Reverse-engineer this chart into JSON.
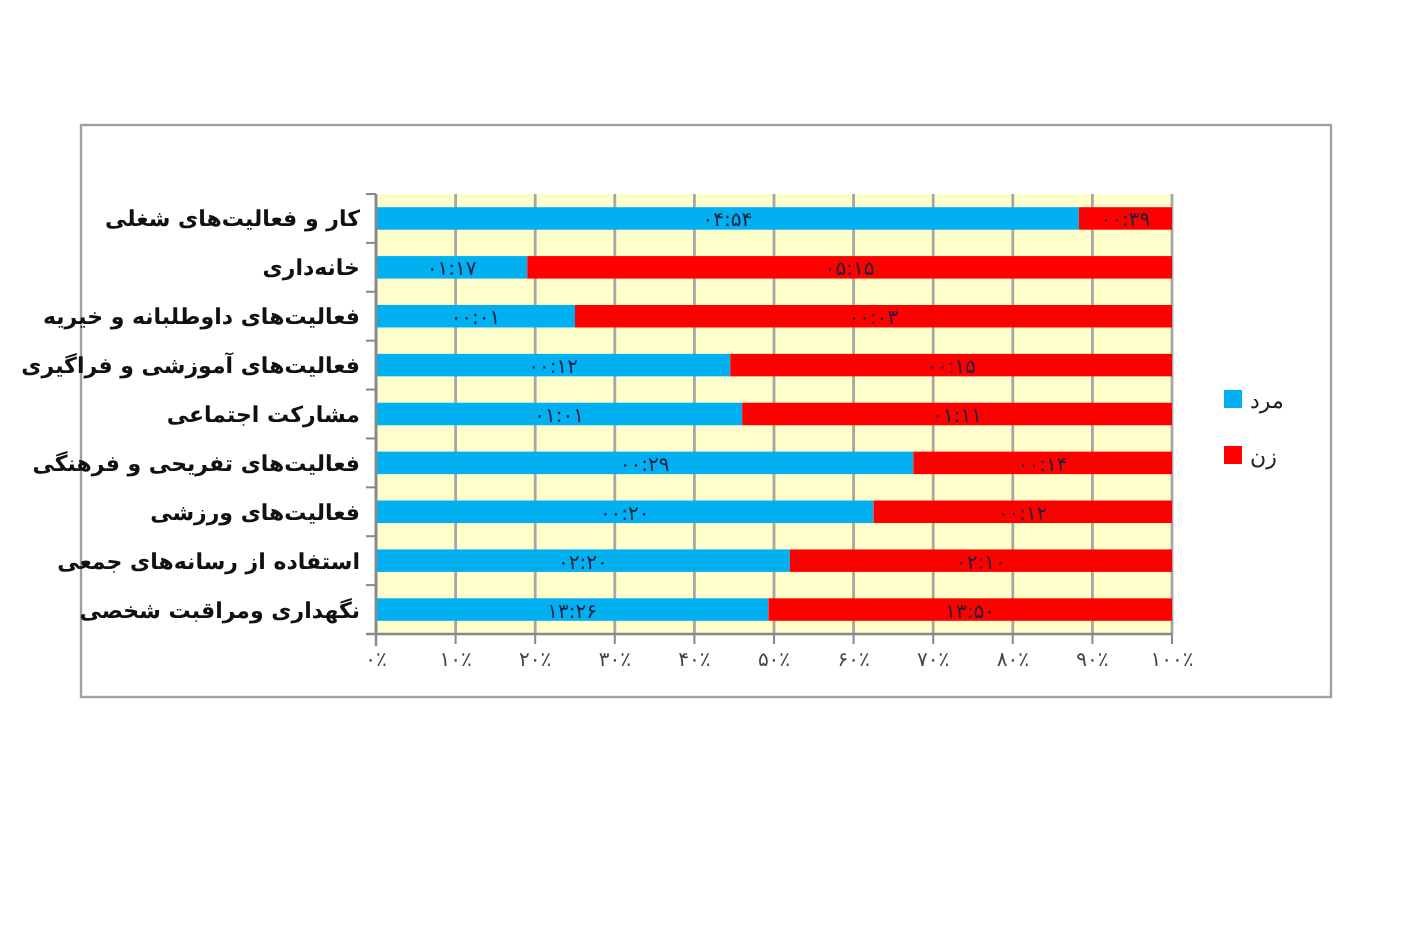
{
  "chart_data": {
    "type": "bar",
    "orientation": "horizontal",
    "stacked": true,
    "categories": [
      "کار و فعالیت‌های شغلی",
      "خانه‌داری",
      "فعالیت‌های داوطلبانه و خیریه",
      "فعالیت‌های آموزشی و فراگیری",
      "مشارکت اجتماعی",
      "فعالیت‌های تفریحی و فرهنگی",
      "فعالیت‌های ورزشی",
      "استفاده از رسانه‌های جمعی",
      "نگهداری ومراقبت شخصی"
    ],
    "series": [
      {
        "name": "مرد",
        "color": "#00b0f0",
        "values": [
          88.3,
          19,
          25,
          44.5,
          46,
          67.5,
          62.5,
          52,
          49.3
        ]
      },
      {
        "name": "زن",
        "color": "#ff0000",
        "values": [
          11.7,
          81,
          75,
          55.5,
          54,
          32.5,
          37.5,
          48,
          50.7
        ]
      }
    ],
    "annotations": [
      "۰۴:۵۴",
      "۰۰:۳۹",
      "۰۱:۱۷",
      "۰۵:۱۵",
      "۰۰:۰۱",
      "۰۰:۰۳",
      "۰۰:۱۲",
      "۰۰:۱۵",
      "۰۱:۰۱",
      "۰۱:۱۱",
      "۰۰:۲۹",
      "۰۰:۱۴",
      "۰۰:۲۰",
      "۰۰:۱۲",
      "۰۲:۲۰",
      "۰۲:۱۰",
      "۱۳:۲۶",
      "۱۳:۵۰"
    ],
    "xlim": [
      0,
      100
    ],
    "xticks": [
      {
        "value": 0,
        "label": "۰٪"
      },
      {
        "value": 10,
        "label": "۱۰٪"
      },
      {
        "value": 20,
        "label": "۲۰٪"
      },
      {
        "value": 30,
        "label": "۳۰٪"
      },
      {
        "value": 40,
        "label": "۴۰٪"
      },
      {
        "value": 50,
        "label": "۵۰٪"
      },
      {
        "value": 60,
        "label": "۶۰٪"
      },
      {
        "value": 70,
        "label": "۷۰٪"
      },
      {
        "value": 80,
        "label": "۸۰٪"
      },
      {
        "value": 90,
        "label": "۹۰٪"
      },
      {
        "value": 100,
        "label": "۱۰۰٪"
      }
    ],
    "grid": "x",
    "legend": "right"
  }
}
